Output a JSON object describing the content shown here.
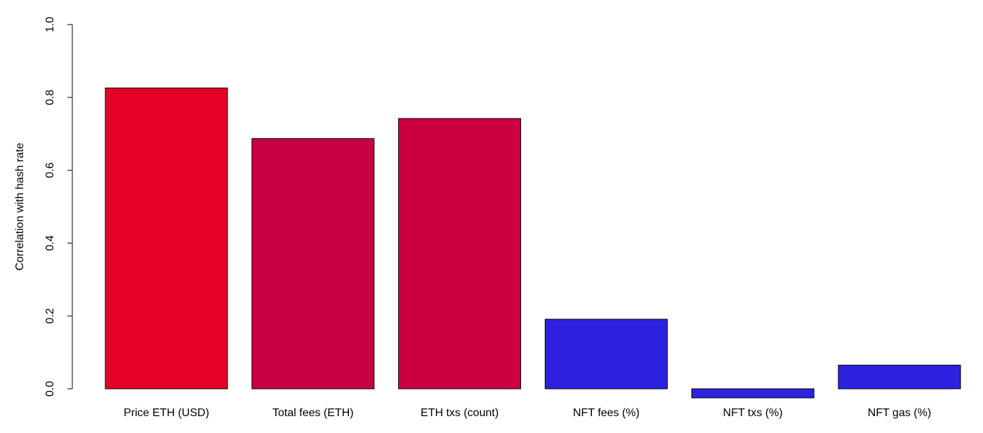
{
  "chart_data": {
    "type": "bar",
    "categories": [
      "Price ETH (USD)",
      "Total fees (ETH)",
      "ETH txs (count)",
      "NFT fees (%)",
      "NFT txs (%)",
      "NFT gas (%)"
    ],
    "values": [
      0.826,
      0.687,
      0.742,
      0.191,
      -0.025,
      0.065
    ],
    "bar_colors": [
      "#e60026",
      "#c70043",
      "#cc0041",
      "#2e22e0",
      "#2e22e0",
      "#2e22e0"
    ],
    "ylabel": "Correlation with hash rate",
    "xlabel": "",
    "ylim": [
      0,
      1
    ],
    "yticks": [
      "0.0",
      "0.2",
      "0.4",
      "0.6",
      "0.8",
      "1.0"
    ],
    "grid": false,
    "legend": "none"
  }
}
